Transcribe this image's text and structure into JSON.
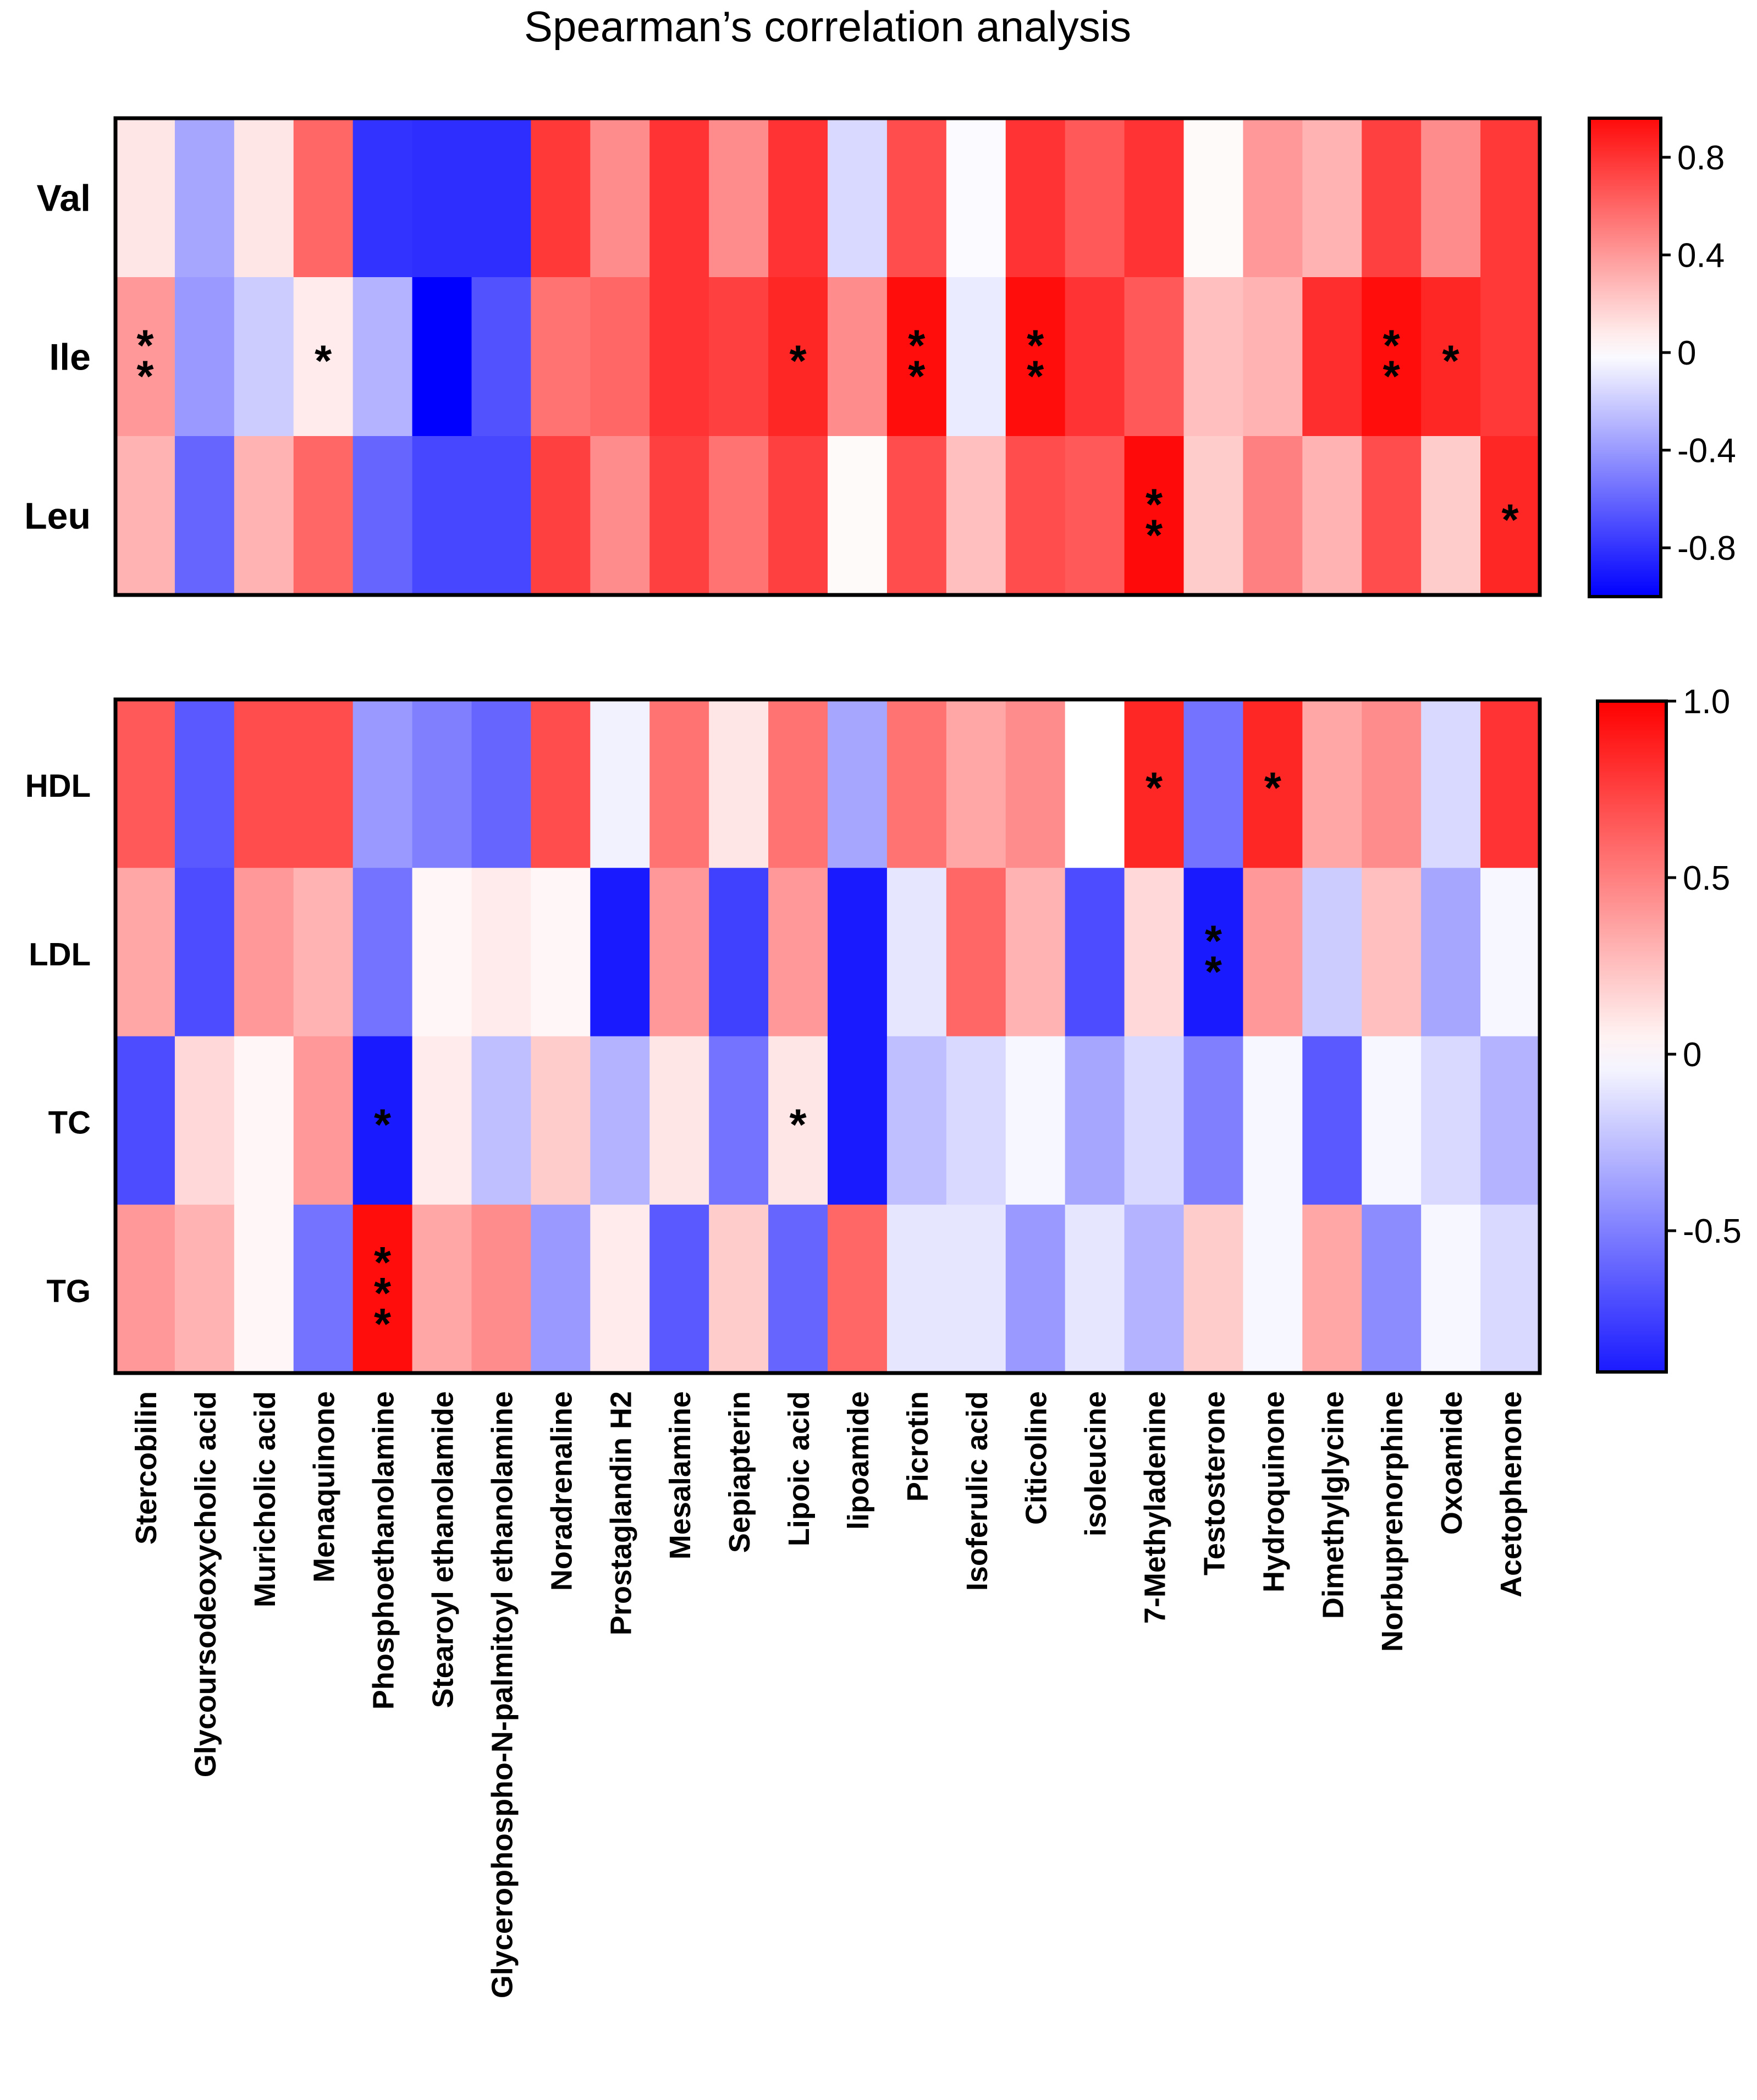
{
  "title": "Spearman’s correlation analysis",
  "colors": {
    "negative": "#0000ff",
    "zero": "#ffffff",
    "positive": "#ff0000",
    "border": "#000000"
  },
  "chart_data": [
    {
      "type": "heatmap",
      "name": "amino-acids",
      "rows": [
        "Val",
        "Ile",
        "Leu"
      ],
      "columns": [
        "Stercobilin",
        "Glycoursodeoxycholic acid",
        "Muricholic acid",
        "Menaquinone",
        "Phosphoethanolamine",
        "Stearoyl ethanolamide",
        "Glycerophospho-N-palmitoyl ethanolamine",
        "Noradrenaline",
        "Prostaglandin H2",
        "Mesalamine",
        "Sepiapterin",
        "Lipoic acid",
        "lipoamide",
        "Picrotin",
        "Isoferulic acid",
        "Citicoline",
        "isoleucine",
        "7-Methyladenine",
        "Testosterone",
        "Hydroquinone",
        "Dimethylglycine",
        "Norbuprenorphine",
        "Oxoamide",
        "Acetophenone"
      ],
      "values": [
        [
          0.1,
          -0.35,
          0.1,
          0.6,
          -0.8,
          -0.82,
          -0.82,
          0.78,
          0.45,
          0.8,
          0.45,
          0.8,
          -0.15,
          0.7,
          -0.02,
          0.8,
          0.65,
          0.8,
          0.02,
          0.4,
          0.3,
          0.75,
          0.45,
          0.78
        ],
        [
          0.4,
          -0.4,
          -0.2,
          0.08,
          -0.3,
          -1.0,
          -0.68,
          0.55,
          0.6,
          0.8,
          0.75,
          0.85,
          0.45,
          0.95,
          -0.08,
          0.95,
          0.8,
          0.65,
          0.25,
          0.3,
          0.82,
          0.95,
          0.85,
          0.78
        ],
        [
          0.3,
          -0.6,
          0.3,
          0.6,
          -0.6,
          -0.72,
          -0.72,
          0.75,
          0.45,
          0.75,
          0.55,
          0.75,
          0.02,
          0.7,
          0.25,
          0.7,
          0.65,
          0.96,
          0.2,
          0.5,
          0.3,
          0.7,
          0.2,
          0.85
        ]
      ],
      "significance": [
        [
          "**",
          "",
          "",
          "*",
          "",
          "",
          "",
          "",
          "",
          "",
          "",
          "*",
          "",
          "**",
          "",
          "**",
          "",
          "",
          "",
          "",
          "",
          "**",
          "*",
          ""
        ],
        [
          "",
          "",
          "",
          "",
          "",
          "",
          "",
          "",
          "",
          "",
          "",
          "",
          "",
          "",
          "",
          "",
          "",
          "**",
          "",
          "",
          "",
          "",
          "",
          "*"
        ]
      ],
      "significance_rows": [
        "Ile",
        "Leu"
      ],
      "colorbar": {
        "range": [
          -1,
          0.96
        ],
        "ticks": [
          "0.8",
          "0.4",
          "0",
          "-0.4",
          "-0.8"
        ],
        "tick_values": [
          0.8,
          0.4,
          0,
          -0.4,
          -0.8
        ]
      }
    },
    {
      "type": "heatmap",
      "name": "lipids",
      "rows": [
        "HDL",
        "LDL",
        "TC",
        "TG"
      ],
      "values": [
        [
          0.65,
          -0.65,
          0.7,
          0.7,
          -0.4,
          -0.5,
          -0.6,
          0.7,
          -0.05,
          0.55,
          0.1,
          0.55,
          -0.35,
          0.55,
          0.35,
          0.45,
          0.0,
          0.85,
          -0.55,
          0.85,
          0.35,
          0.45,
          -0.15,
          0.8
        ],
        [
          0.35,
          -0.7,
          0.4,
          0.3,
          -0.55,
          0.03,
          0.08,
          0.03,
          -0.9,
          0.4,
          -0.75,
          0.4,
          -0.9,
          -0.1,
          0.6,
          0.3,
          -0.7,
          0.15,
          -0.9,
          0.4,
          -0.2,
          0.25,
          -0.35,
          -0.03
        ],
        [
          -0.7,
          0.15,
          0.03,
          0.4,
          -0.9,
          0.08,
          -0.25,
          0.2,
          -0.3,
          0.1,
          -0.55,
          0.1,
          -0.9,
          -0.25,
          -0.15,
          -0.03,
          -0.35,
          -0.15,
          -0.5,
          -0.03,
          -0.65,
          -0.03,
          -0.15,
          -0.3
        ],
        [
          0.4,
          0.3,
          0.03,
          -0.55,
          0.95,
          0.35,
          0.45,
          -0.4,
          0.08,
          -0.65,
          0.2,
          -0.6,
          0.6,
          -0.1,
          -0.1,
          -0.4,
          -0.1,
          -0.3,
          0.2,
          -0.03,
          0.35,
          -0.45,
          -0.03,
          -0.15
        ]
      ],
      "significance": [
        [
          "",
          "",
          "",
          "",
          "",
          "",
          "",
          "",
          "",
          "",
          "",
          "",
          "",
          "",
          "",
          "",
          "",
          "*",
          "",
          "*",
          "",
          "",
          "",
          ""
        ],
        [
          "",
          "",
          "",
          "",
          "",
          "",
          "",
          "",
          "",
          "",
          "",
          "",
          "",
          "",
          "",
          "",
          "",
          "",
          "**",
          "",
          "",
          "",
          "",
          ""
        ],
        [
          "",
          "",
          "",
          "",
          "*",
          "",
          "",
          "",
          "",
          "",
          "",
          "*",
          "",
          "",
          "",
          "",
          "",
          "",
          "",
          "",
          "",
          "",
          "",
          ""
        ],
        [
          "",
          "",
          "",
          "",
          "***",
          "",
          "",
          "",
          "",
          "",
          "",
          "",
          "",
          "",
          "",
          "",
          "",
          "",
          "",
          "",
          "",
          "",
          "",
          ""
        ]
      ],
      "colorbar": {
        "range": [
          -0.9,
          1.0
        ],
        "ticks": [
          "1.0",
          "0.5",
          "0",
          "-0.5"
        ],
        "tick_values": [
          1.0,
          0.5,
          0,
          -0.5
        ]
      }
    }
  ]
}
